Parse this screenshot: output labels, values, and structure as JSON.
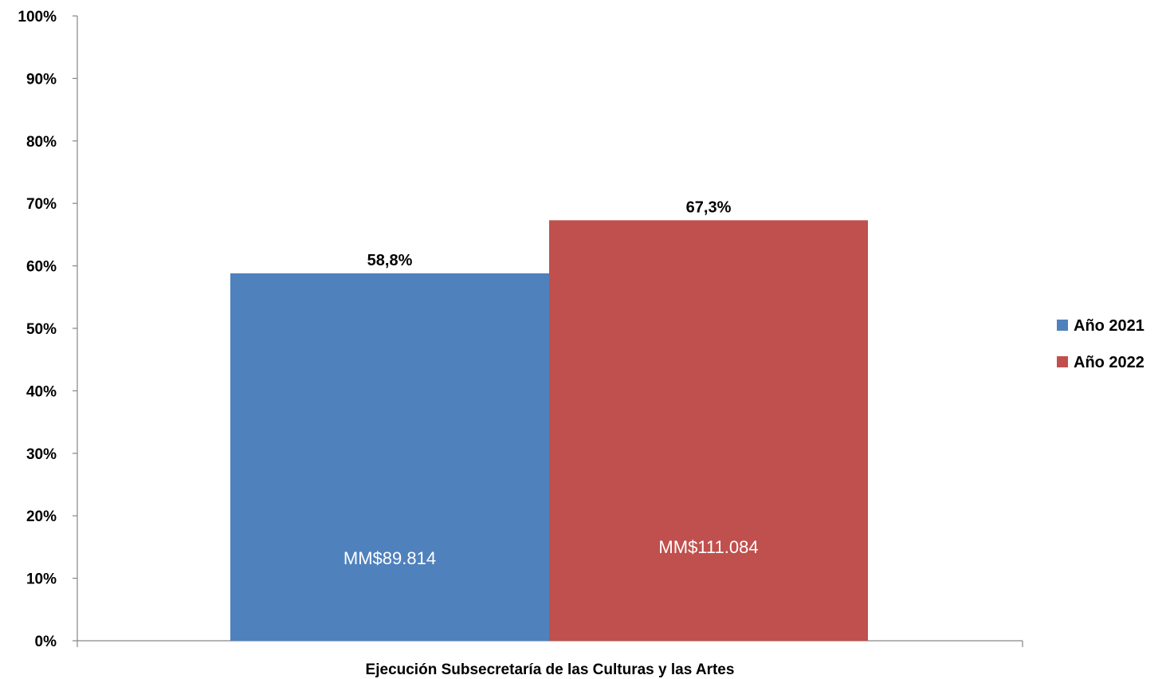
{
  "chart_data": {
    "type": "bar",
    "categories": [
      "Ejecución Subsecretaría de las Culturas y las Artes"
    ],
    "series": [
      {
        "name": "Año 2021",
        "values": [
          58.8
        ],
        "value_label": "58,8%",
        "inner_label": "MM$89.814",
        "color": "#4F81BD"
      },
      {
        "name": "Año 2022",
        "values": [
          67.3
        ],
        "value_label": "67,3%",
        "inner_label": "MM$111.084",
        "color": "#C0504D"
      }
    ],
    "y_ticks": [
      "0%",
      "10%",
      "20%",
      "30%",
      "40%",
      "50%",
      "60%",
      "70%",
      "80%",
      "90%",
      "100%"
    ],
    "ylim": [
      0,
      100
    ],
    "grid": false,
    "legend_position": "right"
  }
}
